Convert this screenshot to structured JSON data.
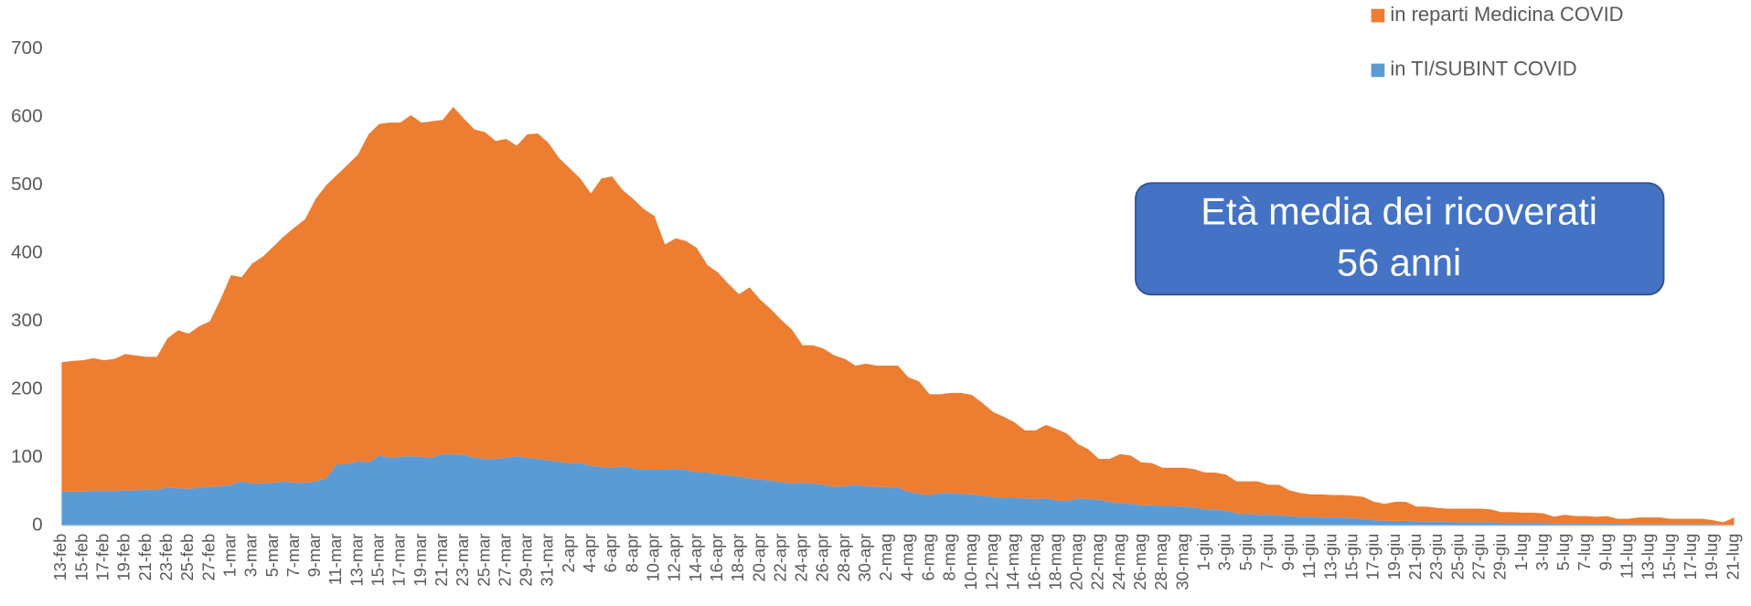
{
  "chart_data": {
    "type": "area",
    "stacked": true,
    "categories": [
      "13-feb",
      null,
      "15-feb",
      null,
      "17-feb",
      null,
      "19-feb",
      null,
      "21-feb",
      null,
      "23-feb",
      null,
      "25-feb",
      null,
      "27-feb",
      null,
      "1-mar",
      null,
      "3-mar",
      null,
      "5-mar",
      null,
      "7-mar",
      null,
      "9-mar",
      null,
      "11-mar",
      null,
      "13-mar",
      null,
      "15-mar",
      null,
      "17-mar",
      null,
      "19-mar",
      null,
      "21-mar",
      null,
      "23-mar",
      null,
      "25-mar",
      null,
      "27-mar",
      null,
      "29-mar",
      null,
      "31-mar",
      null,
      "2-apr",
      null,
      "4-apr",
      null,
      "6-apr",
      null,
      "8-apr",
      null,
      "10-apr",
      null,
      "12-apr",
      null,
      "14-apr",
      null,
      "16-apr",
      null,
      "18-apr",
      null,
      "20-apr",
      null,
      "22-apr",
      null,
      "24-apr",
      null,
      "26-apr",
      null,
      "28-apr",
      null,
      "30-apr",
      null,
      "2-mag",
      null,
      "4-mag",
      null,
      "6-mag",
      null,
      "8-mag",
      null,
      "10-mag",
      null,
      "12-mag",
      null,
      "14-mag",
      null,
      "16-mag",
      null,
      "18-mag",
      null,
      "20-mag",
      null,
      "22-mag",
      null,
      "24-mag",
      null,
      "26-mag",
      null,
      "28-mag",
      null,
      "30-mag",
      null,
      "1-giu",
      null,
      "3-giu",
      null,
      "5-giu",
      null,
      "7-giu",
      null,
      "9-giu",
      null,
      "11-giu",
      null,
      "13-giu",
      null,
      "15-giu",
      null,
      "17-giu",
      null,
      "19-giu",
      null,
      "21-giu",
      null,
      "23-giu",
      null,
      "25-giu",
      null,
      "27-giu",
      null,
      "29-giu",
      null,
      "1-lug",
      null,
      "3-lug",
      null,
      "5-lug",
      null,
      "7-lug",
      null,
      "9-lug",
      null,
      "11-lug",
      null,
      "13-lug",
      null,
      "15-lug",
      null,
      "17-lug",
      null,
      "19-lug",
      null,
      "21-lug"
    ],
    "series": [
      {
        "name": "in TI/SUBINT COVID",
        "color": "#5b9bd5",
        "values": [
          50,
          50,
          50,
          51,
          51,
          51,
          52,
          52,
          53,
          53,
          56,
          55,
          54,
          56,
          57,
          58,
          60,
          65,
          62,
          62,
          63,
          65,
          63,
          63,
          65,
          70,
          90,
          90,
          95,
          93,
          103,
          100,
          101,
          102,
          101,
          100,
          105,
          105,
          104,
          100,
          98,
          98,
          100,
          102,
          100,
          98,
          96,
          94,
          92,
          92,
          88,
          86,
          85,
          87,
          84,
          82,
          82,
          82,
          83,
          82,
          78,
          78,
          76,
          74,
          72,
          70,
          68,
          66,
          64,
          62,
          63,
          62,
          60,
          57,
          58,
          60,
          58,
          57,
          57,
          56,
          50,
          47,
          45,
          48,
          48,
          47,
          46,
          44,
          42,
          41,
          41,
          40,
          39,
          40,
          37,
          36,
          40,
          39,
          38,
          35,
          33,
          32,
          30,
          30,
          29,
          29,
          28,
          27,
          24,
          24,
          22,
          18,
          17,
          16,
          16,
          15,
          14,
          13,
          13,
          12,
          12,
          12,
          11,
          10,
          8,
          7,
          7,
          7,
          6,
          6,
          6,
          6,
          5,
          5,
          5,
          5,
          4,
          4,
          4,
          4,
          4,
          3,
          3,
          3,
          3,
          3,
          3,
          3,
          2,
          2,
          2,
          2,
          2,
          2,
          2,
          2,
          2,
          1,
          1
        ]
      },
      {
        "name": "in reparti Medicina COVID",
        "color": "#ed7d31",
        "values": [
          190,
          192,
          193,
          195,
          192,
          194,
          200,
          198,
          195,
          195,
          219,
          232,
          228,
          237,
          243,
          274,
          308,
          300,
          323,
          333,
          347,
          360,
          375,
          387,
          415,
          430,
          425,
          440,
          450,
          482,
          487,
          492,
          491,
          501,
          491,
          494,
          491,
          510,
          494,
          482,
          480,
          467,
          468,
          456,
          475,
          478,
          466,
          446,
          433,
          418,
          400,
          424,
          428,
          406,
          396,
          383,
          373,
          331,
          339,
          336,
          330,
          305,
          296,
          281,
          268,
          280,
          264,
          252,
          238,
          226,
          202,
          203,
          200,
          193,
          187,
          175,
          180,
          178,
          178,
          179,
          168,
          165,
          148,
          145,
          147,
          148,
          146,
          136,
          125,
          119,
          111,
          100,
          101,
          108,
          105,
          99,
          80,
          73,
          60,
          63,
          72,
          71,
          63,
          62,
          56,
          56,
          57,
          56,
          54,
          54,
          53,
          47,
          48,
          49,
          44,
          45,
          38,
          35,
          33,
          34,
          33,
          33,
          33,
          32,
          27,
          25,
          28,
          28,
          22,
          22,
          20,
          19,
          20,
          20,
          20,
          19,
          16,
          16,
          15,
          15,
          14,
          10,
          13,
          11,
          11,
          10,
          11,
          7,
          8,
          10,
          10,
          10,
          8,
          8,
          8,
          8,
          6,
          4,
          11
        ]
      }
    ],
    "ylim": [
      0,
      700
    ],
    "yticks": [
      0,
      100,
      200,
      300,
      400,
      500,
      600,
      700
    ],
    "grid": false,
    "legend": "top-right",
    "annotation": {
      "lines": [
        "Età media dei ricoverati",
        "56 anni"
      ],
      "color": "#4472c4"
    }
  }
}
